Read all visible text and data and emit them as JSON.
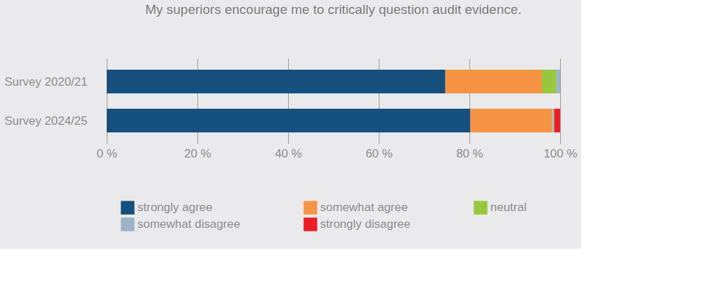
{
  "chart_data": {
    "type": "bar",
    "orientation": "horizontal",
    "stacked": true,
    "title": "My superiors encourage me to critically question audit evidence.",
    "categories": [
      "Survey 2020/21",
      "Survey 2024/25"
    ],
    "series": [
      {
        "name": "strongly agree",
        "color": "#154f7e",
        "values": [
          74.7,
          80.2
        ]
      },
      {
        "name": "somewhat agree",
        "color": "#f69446",
        "values": [
          21.3,
          18.0
        ]
      },
      {
        "name": "neutral",
        "color": "#97c93d",
        "values": [
          3.2,
          0.2
        ]
      },
      {
        "name": "somewhat disagree",
        "color": "#9db3cb",
        "values": [
          0.8,
          0.3
        ]
      },
      {
        "name": "strongly disagree",
        "color": "#ea1d24",
        "values": [
          0,
          1.3
        ]
      }
    ],
    "xlim": [
      0,
      100
    ],
    "xticks": [
      {
        "value": 0,
        "label": "0 %"
      },
      {
        "value": 20,
        "label": "20 %"
      },
      {
        "value": 40,
        "label": "40 %"
      },
      {
        "value": 60,
        "label": "60 %"
      },
      {
        "value": 80,
        "label": "80 %"
      },
      {
        "value": 100,
        "label": "100 %"
      }
    ],
    "grid": "x",
    "legend": "bottom"
  }
}
